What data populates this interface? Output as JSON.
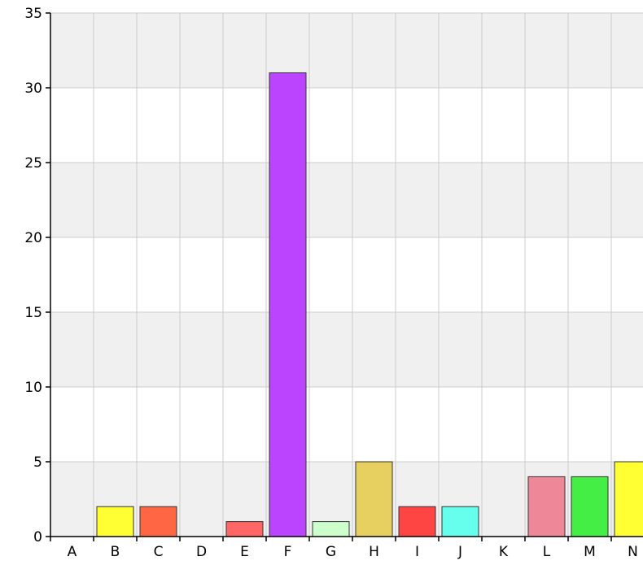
{
  "chart_data": {
    "type": "bar",
    "categories": [
      "A",
      "B",
      "C",
      "D",
      "E",
      "F",
      "G",
      "H",
      "I",
      "J",
      "K",
      "L",
      "M",
      "N"
    ],
    "values": [
      0,
      2,
      2,
      0,
      1,
      31,
      1,
      5,
      2,
      2,
      0,
      4,
      4,
      5
    ],
    "colors": [
      "#cccccc",
      "#ffff33",
      "#ff6644",
      "#cccccc",
      "#ff6666",
      "#bb44ff",
      "#ccffcc",
      "#e8d060",
      "#ff4444",
      "#66ffee",
      "#cccccc",
      "#ee8899",
      "#44ee44",
      "#ffff33"
    ],
    "yticks": [
      "0",
      "5",
      "10",
      "15",
      "20",
      "25",
      "30",
      "35"
    ],
    "ylim": [
      0,
      35
    ],
    "grid": true,
    "title": "",
    "xlabel": "",
    "ylabel": ""
  }
}
